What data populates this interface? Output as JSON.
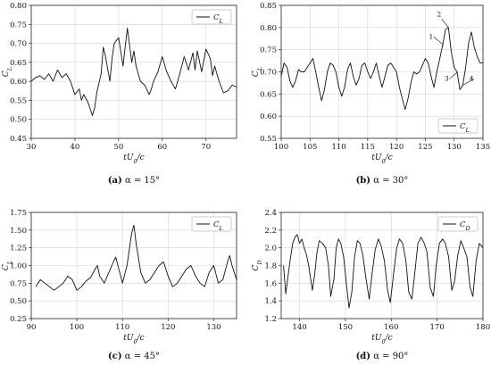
{
  "chart_data": [
    {
      "id": "a",
      "type": "line",
      "caption_label": "(a)",
      "caption_text": "α = 15°",
      "xlabel": "tU0/c",
      "ylabel": "CL",
      "xlim": [
        30,
        77
      ],
      "ylim": [
        0.45,
        0.8
      ],
      "xticks": [
        "30",
        "40",
        "50",
        "60",
        "70"
      ],
      "yticks": [
        "0.45",
        "0.50",
        "0.55",
        "0.60",
        "0.65",
        "0.70",
        "0.75",
        "0.80"
      ],
      "grid": true,
      "legend_position": "top-right",
      "series": [
        {
          "name": "CL",
          "x": [
            30,
            31,
            32,
            33,
            34,
            35,
            36,
            37,
            38,
            39,
            40,
            41,
            41.5,
            42,
            43,
            44,
            44.5,
            45,
            46,
            46.5,
            47,
            48,
            48.5,
            49,
            50,
            51,
            51.5,
            52,
            53,
            53.5,
            54,
            55,
            56,
            57,
            57.5,
            58,
            59,
            60,
            61,
            62,
            63,
            64,
            65,
            66,
            67,
            67.5,
            68,
            69,
            70,
            71,
            71.5,
            72,
            73,
            74,
            75,
            76,
            77
          ],
          "y": [
            0.6,
            0.61,
            0.615,
            0.605,
            0.62,
            0.6,
            0.63,
            0.61,
            0.62,
            0.6,
            0.565,
            0.58,
            0.55,
            0.565,
            0.545,
            0.51,
            0.53,
            0.57,
            0.62,
            0.69,
            0.665,
            0.6,
            0.66,
            0.7,
            0.715,
            0.64,
            0.69,
            0.74,
            0.65,
            0.68,
            0.64,
            0.6,
            0.59,
            0.565,
            0.58,
            0.6,
            0.625,
            0.665,
            0.625,
            0.6,
            0.58,
            0.62,
            0.665,
            0.63,
            0.675,
            0.63,
            0.68,
            0.625,
            0.685,
            0.66,
            0.615,
            0.64,
            0.6,
            0.57,
            0.575,
            0.59,
            0.585
          ]
        }
      ]
    },
    {
      "id": "b",
      "type": "line",
      "caption_label": "(b)",
      "caption_text": "α = 30°",
      "xlabel": "tU0/c",
      "ylabel": "CL",
      "xlim": [
        100,
        135
      ],
      "ylim": [
        0.55,
        0.85
      ],
      "xticks": [
        "100",
        "105",
        "110",
        "115",
        "120",
        "125",
        "130",
        "135"
      ],
      "yticks": [
        "0.55",
        "0.60",
        "0.65",
        "0.70",
        "0.75",
        "0.80",
        "0.85"
      ],
      "grid": true,
      "legend_position": "bottom-right",
      "annotations": [
        "1",
        "2",
        "3",
        "4"
      ],
      "series": [
        {
          "name": "CL",
          "x": [
            100,
            100.5,
            101,
            101.5,
            102,
            102.5,
            103,
            103.5,
            104,
            104.5,
            105,
            105.5,
            106,
            106.5,
            107,
            107.5,
            108,
            108.5,
            109,
            109.5,
            110,
            110.5,
            111,
            111.5,
            112,
            112.5,
            113,
            113.5,
            114,
            114.5,
            115,
            115.5,
            116,
            116.5,
            117,
            117.5,
            118,
            118.5,
            119,
            119.5,
            120,
            120.5,
            121,
            121.5,
            122,
            122.5,
            123,
            123.5,
            124,
            124.5,
            125,
            125.5,
            126,
            126.5,
            127,
            127.5,
            128,
            128.5,
            129,
            129.5,
            130,
            130.5,
            131,
            131.5,
            132,
            132.5,
            133,
            133.5,
            134,
            134.5,
            135
          ],
          "y": [
            0.69,
            0.72,
            0.71,
            0.68,
            0.665,
            0.68,
            0.705,
            0.7,
            0.7,
            0.71,
            0.72,
            0.73,
            0.7,
            0.665,
            0.635,
            0.66,
            0.7,
            0.72,
            0.715,
            0.7,
            0.665,
            0.645,
            0.665,
            0.705,
            0.72,
            0.69,
            0.67,
            0.685,
            0.715,
            0.72,
            0.7,
            0.685,
            0.7,
            0.72,
            0.69,
            0.665,
            0.69,
            0.715,
            0.72,
            0.71,
            0.7,
            0.665,
            0.64,
            0.615,
            0.64,
            0.675,
            0.7,
            0.695,
            0.7,
            0.715,
            0.73,
            0.72,
            0.69,
            0.665,
            0.7,
            0.73,
            0.76,
            0.795,
            0.8,
            0.745,
            0.71,
            0.7,
            0.66,
            0.67,
            0.71,
            0.765,
            0.79,
            0.755,
            0.735,
            0.72,
            0.72
          ]
        }
      ]
    },
    {
      "id": "c",
      "type": "line",
      "caption_label": "(c)",
      "caption_text": "α = 45°",
      "xlabel": "tU0/c",
      "ylabel": "CL",
      "xlim": [
        90,
        135
      ],
      "ylim": [
        0.25,
        1.75
      ],
      "xticks": [
        "90",
        "100",
        "110",
        "120",
        "130"
      ],
      "yticks": [
        "0.25",
        "0.50",
        "0.75",
        "1.00",
        "1.25",
        "1.50",
        "1.75"
      ],
      "grid": true,
      "legend_position": "top-right",
      "series": [
        {
          "name": "CL",
          "x": [
            91,
            92,
            93,
            94,
            95,
            96,
            97,
            98,
            99,
            100,
            101,
            102,
            103,
            104,
            104.5,
            105,
            106,
            107,
            108,
            108.5,
            109,
            110,
            111,
            112,
            112.5,
            113,
            114,
            115,
            116,
            117,
            118,
            119,
            120,
            121,
            122,
            123,
            124,
            125,
            126,
            127,
            128,
            129,
            130,
            131,
            132,
            133,
            133.5,
            134,
            135
          ],
          "y": [
            0.7,
            0.8,
            0.75,
            0.7,
            0.65,
            0.7,
            0.75,
            0.85,
            0.8,
            0.65,
            0.7,
            0.78,
            0.83,
            0.95,
            1.0,
            0.85,
            0.75,
            0.9,
            1.05,
            1.12,
            1.0,
            0.75,
            1.0,
            1.45,
            1.57,
            1.3,
            0.9,
            0.75,
            0.8,
            0.9,
            1.0,
            1.05,
            0.85,
            0.7,
            0.75,
            0.85,
            0.95,
            1.0,
            0.85,
            0.75,
            0.7,
            0.9,
            1.0,
            0.75,
            0.8,
            1.05,
            1.14,
            1.0,
            0.8
          ]
        }
      ]
    },
    {
      "id": "d",
      "type": "line",
      "caption_label": "(d)",
      "caption_text": "α = 90°",
      "xlabel": "tU0/c",
      "ylabel": "CD",
      "xlim": [
        136,
        180
      ],
      "ylim": [
        1.2,
        2.4
      ],
      "xticks": [
        "140",
        "150",
        "160",
        "170",
        "180"
      ],
      "yticks": [
        "1.2",
        "1.4",
        "1.6",
        "1.8",
        "2.0",
        "2.2",
        "2.4"
      ],
      "grid": true,
      "legend_position": "top-right",
      "series": [
        {
          "name": "CD",
          "x": [
            136.5,
            137,
            137.8,
            138.5,
            139,
            139.5,
            140,
            140.5,
            141,
            141.5,
            142,
            142.8,
            143.3,
            143.8,
            144.3,
            145,
            145.7,
            146.3,
            146.8,
            147.5,
            148,
            148.5,
            149,
            149.6,
            150.2,
            150.8,
            151.4,
            152,
            152.6,
            153.2,
            153.8,
            154.5,
            155.2,
            155.8,
            156.5,
            157.2,
            157.8,
            158.5,
            159.2,
            159.8,
            160.5,
            161.2,
            161.8,
            162.5,
            163.2,
            163.8,
            164.5,
            165.2,
            165.8,
            166.5,
            167.2,
            167.8,
            168.5,
            169.2,
            169.8,
            170.5,
            171.2,
            171.8,
            172.5,
            173.2,
            173.8,
            174.5,
            175.2,
            175.8,
            176.5,
            177.2,
            177.8,
            178.5,
            179.2,
            180
          ],
          "y": [
            1.8,
            1.48,
            1.8,
            2.05,
            2.12,
            2.15,
            2.05,
            2.1,
            2.0,
            1.92,
            1.8,
            1.52,
            1.7,
            1.95,
            2.08,
            2.05,
            2.0,
            1.8,
            1.45,
            1.65,
            2.0,
            2.1,
            2.05,
            1.9,
            1.6,
            1.32,
            1.5,
            1.9,
            2.08,
            2.05,
            1.92,
            1.65,
            1.42,
            1.7,
            1.98,
            2.1,
            2.02,
            1.85,
            1.52,
            1.38,
            1.7,
            2.0,
            2.1,
            2.05,
            1.85,
            1.5,
            1.42,
            1.75,
            2.05,
            2.12,
            2.05,
            1.95,
            1.55,
            1.45,
            1.8,
            2.05,
            2.1,
            2.05,
            1.9,
            1.52,
            1.62,
            1.92,
            2.08,
            2.0,
            1.9,
            1.55,
            1.45,
            1.85,
            2.05,
            2.0
          ]
        }
      ]
    }
  ]
}
